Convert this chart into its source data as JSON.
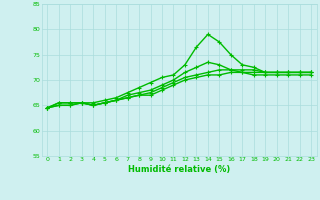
{
  "bg_color": "#cff0f0",
  "grid_color": "#aadddd",
  "line_color": "#00bb00",
  "xlabel": "Humidité relative (%)",
  "xlim": [
    -0.5,
    23.5
  ],
  "ylim": [
    55,
    85
  ],
  "yticks": [
    55,
    60,
    65,
    70,
    75,
    80,
    85
  ],
  "xticks": [
    0,
    1,
    2,
    3,
    4,
    5,
    6,
    7,
    8,
    9,
    10,
    11,
    12,
    13,
    14,
    15,
    16,
    17,
    18,
    19,
    20,
    21,
    22,
    23
  ],
  "series": [
    [
      64.5,
      65.5,
      65.5,
      65.5,
      65.5,
      66.0,
      66.5,
      67.5,
      68.5,
      69.5,
      70.5,
      71.0,
      73.0,
      76.5,
      79.0,
      77.5,
      75.0,
      73.0,
      72.5,
      71.5,
      71.5,
      71.5,
      71.5,
      71.5
    ],
    [
      64.5,
      65.5,
      65.5,
      65.5,
      65.0,
      65.5,
      66.0,
      67.0,
      67.5,
      68.0,
      69.0,
      70.0,
      71.5,
      72.5,
      73.5,
      73.0,
      72.0,
      71.5,
      71.0,
      71.0,
      71.0,
      71.0,
      71.0,
      71.0
    ],
    [
      64.5,
      65.0,
      65.0,
      65.5,
      65.0,
      65.5,
      66.0,
      66.5,
      67.0,
      67.5,
      68.5,
      69.5,
      70.5,
      71.0,
      71.5,
      72.0,
      72.0,
      72.0,
      72.0,
      71.5,
      71.5,
      71.5,
      71.5,
      71.5
    ],
    [
      64.5,
      65.0,
      65.0,
      65.5,
      65.0,
      65.5,
      66.0,
      66.5,
      67.0,
      67.0,
      68.0,
      69.0,
      70.0,
      70.5,
      71.0,
      71.0,
      71.5,
      71.5,
      71.5,
      71.5,
      71.5,
      71.5,
      71.5,
      71.5
    ]
  ],
  "xlabel_fontsize": 6,
  "tick_fontsize": 4.5,
  "linewidth": 1.0,
  "markersize": 3.5
}
